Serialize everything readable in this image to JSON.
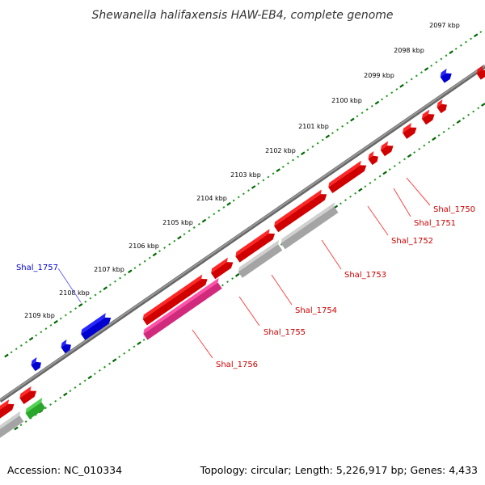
{
  "title": "Shewanella halifaxensis HAW-EB4, complete genome",
  "footer": {
    "accession": "Accession: NC_010334",
    "summary": "Topology: circular; Length: 5,226,917 bp; Genes: 4,433"
  },
  "colors": {
    "backbone": "#7a7a7a",
    "forward_cds": "#ff0000",
    "reverse_cds": "#ff0000",
    "gene_blue": "#0000ff",
    "gene_pink": "#ff3399",
    "gene_gray": "#c8c8c8",
    "gene_green": "#33cc33",
    "tick_dark": "#006600",
    "tick_light": "#229922",
    "label_red": "#cc0000",
    "label_blue": "#0000cc"
  },
  "scale_labels": [
    "2097 kbp",
    "2098 kbp",
    "2099 kbp",
    "2100 kbp",
    "2101 kbp",
    "2102 kbp",
    "2103 kbp",
    "2104 kbp",
    "2105 kbp",
    "2106 kbp",
    "2107 kbp",
    "2108 kbp",
    "2109 kbp"
  ],
  "gene_labels": [
    {
      "text": "Shal_1750",
      "color": "red"
    },
    {
      "text": "Shal_1751",
      "color": "red"
    },
    {
      "text": "Shal_1752",
      "color": "red"
    },
    {
      "text": "Shal_1753",
      "color": "red"
    },
    {
      "text": "Shal_1754",
      "color": "red"
    },
    {
      "text": "Shal_1755",
      "color": "red"
    },
    {
      "text": "Shal_1756",
      "color": "red"
    },
    {
      "text": "Shal_1757",
      "color": "blue"
    }
  ]
}
